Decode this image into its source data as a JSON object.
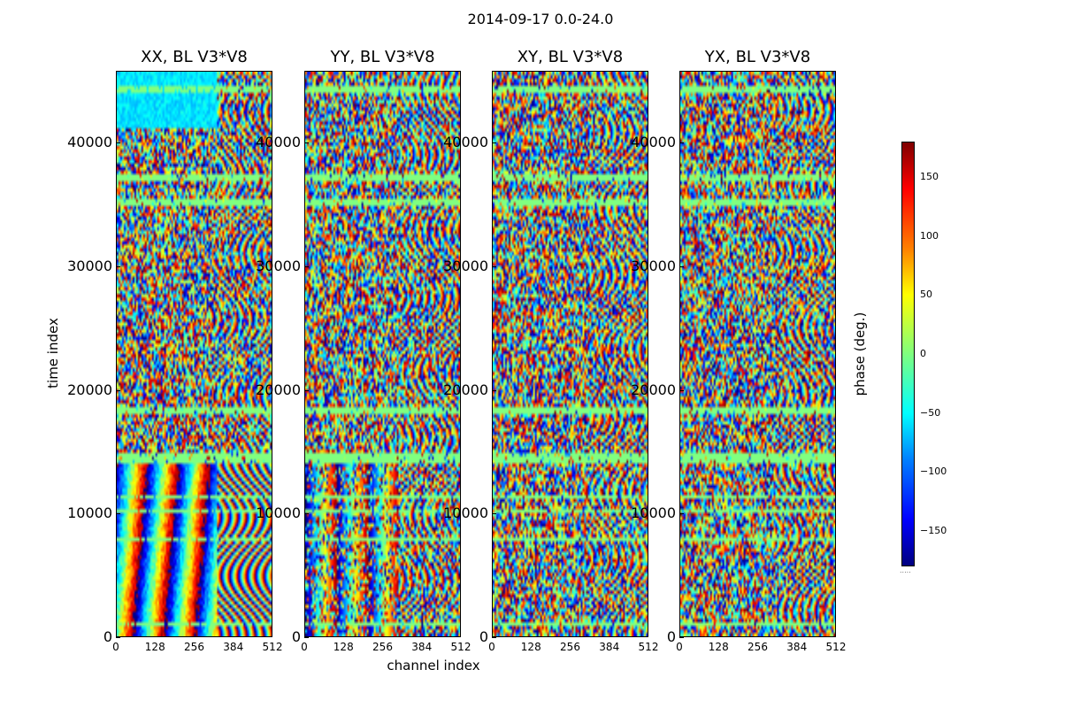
{
  "suptitle": "2014-09-17 0.0-24.0",
  "colorbar": {
    "label": "phase (deg.)",
    "ticks": [
      "150",
      "100",
      "50",
      "0",
      "−50",
      "−100",
      "−150"
    ],
    "tick_values": [
      150,
      100,
      50,
      0,
      -50,
      -100,
      -150
    ],
    "range": [
      -180,
      180
    ],
    "colormap": "jet",
    "footer": "....."
  },
  "chart_data": [
    {
      "type": "heatmap",
      "title": "XX, BL V3*V8",
      "xlabel": "",
      "ylabel": "time index",
      "xlim": [
        0,
        512
      ],
      "ylim": [
        0,
        45800
      ],
      "xticks": [
        0,
        128,
        256,
        384,
        512
      ],
      "yticks": [
        0,
        10000,
        20000,
        30000,
        40000
      ],
      "pattern": "fringes"
    },
    {
      "type": "heatmap",
      "title": "YY, BL V3*V8",
      "xlabel": "channel index",
      "ylabel": "",
      "xlim": [
        0,
        512
      ],
      "ylim": [
        0,
        45800
      ],
      "xticks": [
        0,
        128,
        256,
        384,
        512
      ],
      "yticks": [
        0,
        10000,
        20000,
        30000,
        40000
      ],
      "pattern": "noisy-fringes"
    },
    {
      "type": "heatmap",
      "title": "XY, BL V3*V8",
      "xlabel": "",
      "ylabel": "",
      "xlim": [
        0,
        512
      ],
      "ylim": [
        0,
        45800
      ],
      "xticks": [
        0,
        128,
        256,
        384,
        512
      ],
      "yticks": [
        0,
        10000,
        20000,
        30000,
        40000
      ],
      "pattern": "noise"
    },
    {
      "type": "heatmap",
      "title": "YX, BL V3*V8",
      "xlabel": "",
      "ylabel": "",
      "xlim": [
        0,
        512
      ],
      "ylim": [
        0,
        45800
      ],
      "xticks": [
        0,
        128,
        256,
        384,
        512
      ],
      "yticks": [
        0,
        10000,
        20000,
        30000,
        40000
      ],
      "pattern": "noise"
    }
  ],
  "labels": {
    "xlabel": "channel index",
    "ylabel": "time index",
    "ytick_labels": [
      "0",
      "10000",
      "20000",
      "30000",
      "40000"
    ],
    "xtick_labels": [
      "0",
      "128",
      "256",
      "384",
      "512"
    ]
  }
}
